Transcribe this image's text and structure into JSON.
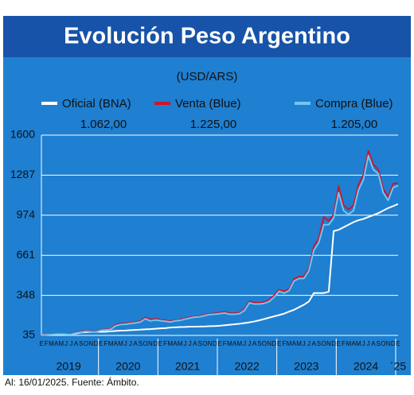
{
  "chart_data": {
    "type": "line",
    "title": "Evolución Peso Argentino",
    "subtitle": "(USD/ARS)",
    "footer": "Al: 16/01/2025. Fuente: Ámbito.",
    "categories": [
      "E",
      "F",
      "M",
      "A",
      "M",
      "J",
      "J",
      "A",
      "S",
      "O",
      "N",
      "D",
      "E",
      "F",
      "M",
      "A",
      "M",
      "J",
      "J",
      "A",
      "S",
      "O",
      "N",
      "D",
      "E",
      "F",
      "M",
      "A",
      "M",
      "J",
      "J",
      "A",
      "S",
      "O",
      "N",
      "D",
      "E",
      "F",
      "M",
      "A",
      "M",
      "J",
      "J",
      "A",
      "S",
      "O",
      "N",
      "D",
      "E",
      "F",
      "M",
      "A",
      "M",
      "J",
      "J",
      "A",
      "S",
      "O",
      "N",
      "D",
      "E",
      "F",
      "M",
      "A",
      "M",
      "J",
      "J",
      "A",
      "S",
      "O",
      "N",
      "D",
      "E"
    ],
    "years": [
      "2019",
      "2020",
      "2021",
      "2022",
      "2023",
      "2024",
      "´25"
    ],
    "ylim": [
      35,
      1600
    ],
    "yticks": [
      35,
      348,
      661,
      974,
      1287,
      1600
    ],
    "grid": true,
    "series": [
      {
        "name": "Oficial (BNA)",
        "color": "#ffffff",
        "legend_value": "1.062,00",
        "values": [
          39,
          41,
          44,
          45,
          46,
          45,
          44,
          50,
          58,
          60,
          62,
          63,
          63,
          64,
          67,
          70,
          72,
          73,
          76,
          78,
          80,
          82,
          84,
          87,
          90,
          92,
          96,
          98,
          100,
          101,
          103,
          103,
          104,
          105,
          107,
          108,
          110,
          114,
          118,
          122,
          126,
          131,
          137,
          144,
          153,
          163,
          174,
          184,
          194,
          205,
          221,
          235,
          255,
          275,
          300,
          366,
          366,
          366,
          376,
          850,
          860,
          880,
          900,
          920,
          935,
          945,
          960,
          975,
          990,
          1010,
          1030,
          1045,
          1062
        ]
      },
      {
        "name": "Venta (Blue)",
        "color": "#d0142c",
        "legend_value": "1.225,00",
        "values": [
          39,
          41,
          45,
          47,
          47,
          45,
          45,
          58,
          64,
          70,
          66,
          65,
          78,
          82,
          86,
          118,
          128,
          128,
          134,
          138,
          148,
          175,
          158,
          165,
          158,
          152,
          146,
          152,
          158,
          168,
          176,
          182,
          186,
          196,
          204,
          207,
          212,
          218,
          208,
          208,
          212,
          240,
          300,
          292,
          290,
          295,
          312,
          348,
          392,
          378,
          398,
          474,
          494,
          494,
          555,
          730,
          790,
          960,
          930,
          980,
          1200,
          1050,
          1020,
          1050,
          1210,
          1290,
          1476,
          1370,
          1330,
          1180,
          1115,
          1220,
          1225
        ]
      },
      {
        "name": "Compra (Blue)",
        "color": "#6ec6f2",
        "legend_value": "1.205,00",
        "values": [
          37,
          39,
          42,
          44,
          45,
          43,
          42,
          54,
          60,
          66,
          63,
          62,
          74,
          78,
          82,
          110,
          120,
          122,
          128,
          132,
          140,
          165,
          148,
          155,
          150,
          145,
          140,
          148,
          152,
          162,
          170,
          178,
          180,
          190,
          198,
          200,
          205,
          210,
          200,
          200,
          205,
          230,
          290,
          280,
          280,
          285,
          300,
          335,
          380,
          365,
          385,
          460,
          480,
          480,
          540,
          700,
          760,
          900,
          900,
          950,
          1150,
          1010,
          980,
          1010,
          1170,
          1250,
          1440,
          1330,
          1300,
          1150,
          1090,
          1190,
          1205
        ]
      }
    ]
  }
}
